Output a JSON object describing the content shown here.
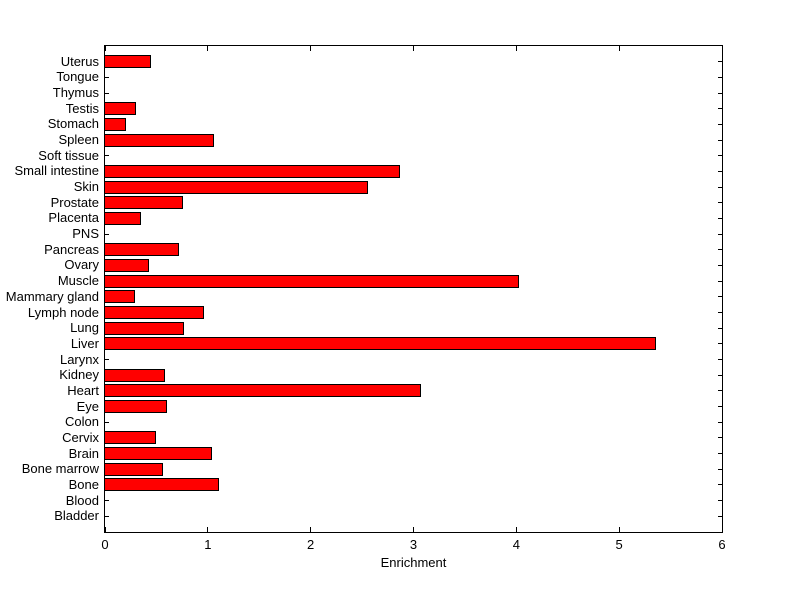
{
  "figure": {
    "background": "#FFFFFF"
  },
  "chart_data": {
    "type": "bar",
    "orientation": "horizontal",
    "title": "",
    "xlabel": "Enrichment",
    "ylabel": "",
    "xlim": [
      0,
      6
    ],
    "x_ticks": [
      0,
      1,
      2,
      3,
      4,
      5,
      6
    ],
    "grid": false,
    "legend": false,
    "bar_color": "#FF0000",
    "bar_edge_color": "#000000",
    "axis_color": "#000000",
    "categories": [
      "Uterus",
      "Tongue",
      "Thymus",
      "Testis",
      "Stomach",
      "Spleen",
      "Soft tissue",
      "Small intestine",
      "Skin",
      "Prostate",
      "Placenta",
      "PNS",
      "Pancreas",
      "Ovary",
      "Muscle",
      "Mammary gland",
      "Lymph node",
      "Lung",
      "Liver",
      "Larynx",
      "Kidney",
      "Heart",
      "Eye",
      "Colon",
      "Cervix",
      "Brain",
      "Bone marrow",
      "Bone",
      "Blood",
      "Bladder"
    ],
    "values": [
      0.44,
      0,
      0,
      0.29,
      0.19,
      1.05,
      0,
      2.86,
      2.55,
      0.75,
      0.34,
      0,
      0.71,
      0.42,
      4.02,
      0.28,
      0.95,
      0.76,
      5.35,
      0,
      0.57,
      3.06,
      0.59,
      0,
      0.49,
      1.03,
      0.55,
      1.1,
      0,
      0
    ]
  }
}
